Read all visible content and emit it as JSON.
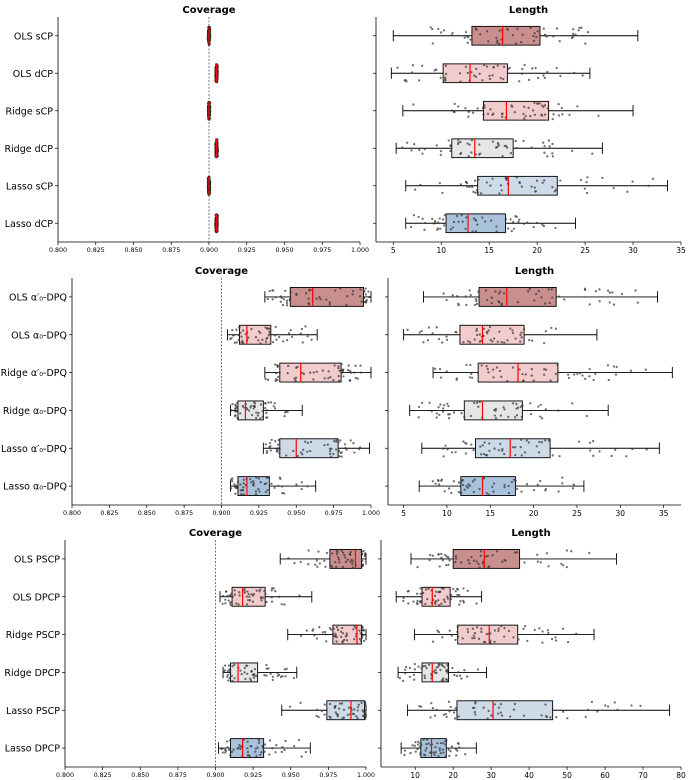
{
  "colors": {
    "red": "#c98e8e",
    "pink": "#f2cccc",
    "gray": "#e6e6e6",
    "lightblue": "#cddbe9",
    "blue": "#a9c2dc",
    "median": "#ff0000",
    "ref": "#555555"
  },
  "chart_data": [
    {
      "type": "box",
      "panel": "1-coverage",
      "title": "Coverage",
      "xlim": [
        0.8,
        1.0
      ],
      "ticks": [
        "0.800",
        "0.825",
        "0.850",
        "0.875",
        "0.900",
        "0.925",
        "0.950",
        "0.975",
        "1.000"
      ],
      "tick_values": [
        0.8,
        0.825,
        0.85,
        0.875,
        0.9,
        0.925,
        0.95,
        0.975,
        1.0
      ],
      "reference_line": 0.9,
      "rows": [
        {
          "label": "OLS sCP",
          "min": 0.899,
          "q1": 0.8995,
          "median": 0.9,
          "q3": 0.9005,
          "max": 0.901,
          "color": "none"
        },
        {
          "label": "OLS dCP",
          "min": 0.904,
          "q1": 0.9045,
          "median": 0.905,
          "q3": 0.9055,
          "max": 0.906,
          "color": "none"
        },
        {
          "label": "Ridge sCP",
          "min": 0.899,
          "q1": 0.8995,
          "median": 0.9,
          "q3": 0.9005,
          "max": 0.901,
          "color": "none"
        },
        {
          "label": "Ridge dCP",
          "min": 0.904,
          "q1": 0.9045,
          "median": 0.905,
          "q3": 0.9055,
          "max": 0.906,
          "color": "none"
        },
        {
          "label": "Lasso sCP",
          "min": 0.899,
          "q1": 0.8995,
          "median": 0.9,
          "q3": 0.9005,
          "max": 0.901,
          "color": "none"
        },
        {
          "label": "Lasso dCP",
          "min": 0.904,
          "q1": 0.9045,
          "median": 0.905,
          "q3": 0.9055,
          "max": 0.906,
          "color": "none"
        }
      ]
    },
    {
      "type": "box",
      "panel": "1-length",
      "title": "Length",
      "xlim": [
        3.2,
        35
      ],
      "ticks": [
        "5",
        "10",
        "15",
        "20",
        "25",
        "30",
        "35"
      ],
      "tick_values": [
        5,
        10,
        15,
        20,
        25,
        30,
        35
      ],
      "rows": [
        {
          "label": "OLS sCP",
          "min": 5,
          "q1": 13.2,
          "median": 16.4,
          "q3": 20.3,
          "max": 30.5,
          "color": "red"
        },
        {
          "label": "OLS dCP",
          "min": 4.8,
          "q1": 10.2,
          "median": 13,
          "q3": 16.9,
          "max": 25.5,
          "color": "pink"
        },
        {
          "label": "Ridge sCP",
          "min": 6,
          "q1": 14.4,
          "median": 16.8,
          "q3": 21.2,
          "max": 30,
          "color": "pink"
        },
        {
          "label": "Ridge dCP",
          "min": 5.3,
          "q1": 11.1,
          "median": 13.5,
          "q3": 17.5,
          "max": 26.8,
          "color": "gray"
        },
        {
          "label": "Lasso sCP",
          "min": 6.3,
          "q1": 13.8,
          "median": 17,
          "q3": 22.1,
          "max": 33.6,
          "color": "lightblue"
        },
        {
          "label": "Lasso dCP",
          "min": 6.3,
          "q1": 10.5,
          "median": 12.8,
          "q3": 16.7,
          "max": 24,
          "color": "blue"
        }
      ]
    },
    {
      "type": "box",
      "panel": "2-coverage",
      "title": "Coverage",
      "xlim": [
        0.8,
        1.0
      ],
      "ticks": [
        "0.800",
        "0.825",
        "0.850",
        "0.875",
        "0.900",
        "0.925",
        "0.950",
        "0.975",
        "1.000"
      ],
      "tick_values": [
        0.8,
        0.825,
        0.85,
        0.875,
        0.9,
        0.925,
        0.95,
        0.975,
        1.0
      ],
      "reference_line": 0.9,
      "rows": [
        {
          "label": "OLS α′₀-DPQ",
          "min": 0.929,
          "q1": 0.946,
          "median": 0.961,
          "q3": 0.995,
          "max": 1.0,
          "color": "red"
        },
        {
          "label": "OLS α₀-DPQ",
          "min": 0.904,
          "q1": 0.912,
          "median": 0.917,
          "q3": 0.933,
          "max": 0.964,
          "color": "pink"
        },
        {
          "label": "Ridge α′₀-DPQ",
          "min": 0.929,
          "q1": 0.939,
          "median": 0.953,
          "q3": 0.98,
          "max": 1.0,
          "color": "pink"
        },
        {
          "label": "Ridge α₀-DPQ",
          "min": 0.906,
          "q1": 0.911,
          "median": 0.916,
          "q3": 0.928,
          "max": 0.954,
          "color": "gray"
        },
        {
          "label": "Lasso α′₀-DPQ",
          "min": 0.928,
          "q1": 0.939,
          "median": 0.95,
          "q3": 0.978,
          "max": 0.999,
          "color": "lightblue"
        },
        {
          "label": "Lasso α₀-DPQ",
          "min": 0.906,
          "q1": 0.911,
          "median": 0.917,
          "q3": 0.932,
          "max": 0.963,
          "color": "blue"
        }
      ]
    },
    {
      "type": "box",
      "panel": "2-length",
      "title": "Length",
      "xlim": [
        3.2,
        37
      ],
      "ticks": [
        "5",
        "10",
        "15",
        "20",
        "25",
        "30",
        "35"
      ],
      "tick_values": [
        5,
        10,
        15,
        20,
        25,
        30,
        35
      ],
      "rows": [
        {
          "label": "OLS α′₀-DPQ",
          "min": 7.3,
          "q1": 13.7,
          "median": 16.9,
          "q3": 22.6,
          "max": 34.3,
          "color": "red"
        },
        {
          "label": "OLS α₀-DPQ",
          "min": 5,
          "q1": 11.5,
          "median": 14.1,
          "q3": 18.9,
          "max": 27.3,
          "color": "pink"
        },
        {
          "label": "Ridge α′₀-DPQ",
          "min": 8.4,
          "q1": 13.6,
          "median": 18.2,
          "q3": 22.8,
          "max": 36,
          "color": "pink"
        },
        {
          "label": "Ridge α₀-DPQ",
          "min": 5.7,
          "q1": 12,
          "median": 14.1,
          "q3": 18.7,
          "max": 28.6,
          "color": "gray"
        },
        {
          "label": "Lasso α′₀-DPQ",
          "min": 7.1,
          "q1": 13.3,
          "median": 17.3,
          "q3": 21.9,
          "max": 34.5,
          "color": "lightblue"
        },
        {
          "label": "Lasso α₀-DPQ",
          "min": 6.8,
          "q1": 11.6,
          "median": 14.1,
          "q3": 17.9,
          "max": 25.8,
          "color": "blue"
        }
      ]
    },
    {
      "type": "box",
      "panel": "3-coverage",
      "title": "Coverage",
      "xlim": [
        0.8,
        1.0
      ],
      "ticks": [
        "0.800",
        "0.825",
        "0.850",
        "0.875",
        "0.900",
        "0.925",
        "0.950",
        "0.975",
        "1.000"
      ],
      "tick_values": [
        0.8,
        0.825,
        0.85,
        0.875,
        0.9,
        0.925,
        0.95,
        0.975,
        1.0
      ],
      "reference_line": 0.9,
      "rows": [
        {
          "label": "OLS PSCP",
          "min": 0.943,
          "q1": 0.976,
          "median": 0.993,
          "q3": 0.997,
          "max": 1.0,
          "color": "red"
        },
        {
          "label": "OLS DPCP",
          "min": 0.903,
          "q1": 0.911,
          "median": 0.918,
          "q3": 0.933,
          "max": 0.964,
          "color": "pink"
        },
        {
          "label": "Ridge PSCP",
          "min": 0.948,
          "q1": 0.978,
          "median": 0.994,
          "q3": 0.997,
          "max": 1.0,
          "color": "pink"
        },
        {
          "label": "Ridge DPCP",
          "min": 0.905,
          "q1": 0.91,
          "median": 0.915,
          "q3": 0.928,
          "max": 0.954,
          "color": "gray"
        },
        {
          "label": "Lasso PSCP",
          "min": 0.944,
          "q1": 0.974,
          "median": 0.99,
          "q3": 0.999,
          "max": 1.0,
          "color": "lightblue"
        },
        {
          "label": "Lasso DPCP",
          "min": 0.902,
          "q1": 0.91,
          "median": 0.918,
          "q3": 0.932,
          "max": 0.963,
          "color": "blue"
        }
      ]
    },
    {
      "type": "box",
      "panel": "3-length",
      "title": "Length",
      "xlim": [
        1,
        80
      ],
      "ticks": [
        "10",
        "20",
        "30",
        "40",
        "50",
        "60",
        "70",
        "80"
      ],
      "tick_values": [
        10,
        20,
        30,
        40,
        50,
        60,
        70,
        80
      ],
      "rows": [
        {
          "label": "OLS PSCP",
          "min": 8.9,
          "q1": 20,
          "median": 28.2,
          "q3": 37.5,
          "max": 63,
          "color": "red"
        },
        {
          "label": "OLS DPCP",
          "min": 5,
          "q1": 11.8,
          "median": 14.5,
          "q3": 19.2,
          "max": 27.5,
          "color": "pink"
        },
        {
          "label": "Ridge PSCP",
          "min": 9.8,
          "q1": 21.2,
          "median": 29.5,
          "q3": 37,
          "max": 57.1,
          "color": "pink"
        },
        {
          "label": "Ridge DPCP",
          "min": 5.5,
          "q1": 11.8,
          "median": 14.5,
          "q3": 18.8,
          "max": 28.8,
          "color": "gray"
        },
        {
          "label": "Lasso PSCP",
          "min": 8,
          "q1": 21,
          "median": 30.5,
          "q3": 46.2,
          "max": 77,
          "color": "lightblue"
        },
        {
          "label": "Lasso DPCP",
          "min": 6.3,
          "q1": 11.5,
          "median": 14.3,
          "q3": 18.2,
          "max": 26.1,
          "color": "blue"
        }
      ]
    }
  ]
}
